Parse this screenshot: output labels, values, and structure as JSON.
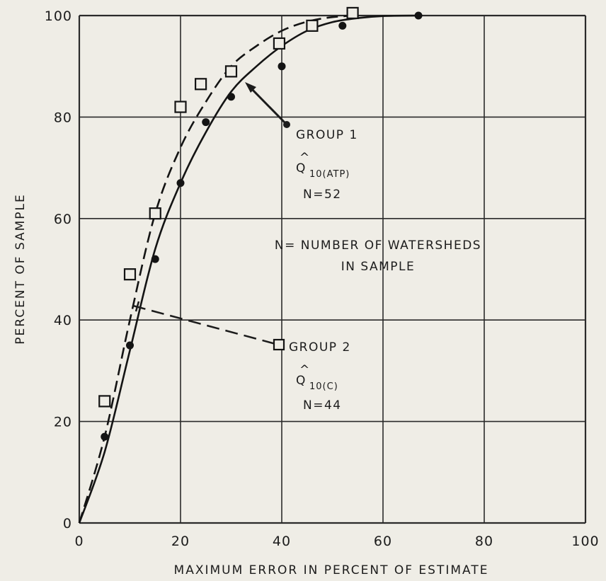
{
  "chart_data": {
    "type": "scatter",
    "title": "",
    "xlabel": "MAXIMUM ERROR IN PERCENT OF ESTIMATE",
    "ylabel": "PERCENT OF SAMPLE",
    "xlim": [
      0,
      100
    ],
    "ylim": [
      0,
      100
    ],
    "x_ticks": [
      "0",
      "20",
      "40",
      "60",
      "80",
      "100"
    ],
    "y_ticks": [
      "0",
      "20",
      "40",
      "60",
      "80",
      "100"
    ],
    "grid": true,
    "series": [
      {
        "name": "GROUP 1",
        "marker": "filled-circle",
        "line_style": "solid",
        "points": [
          {
            "x": 5,
            "y": 17
          },
          {
            "x": 10,
            "y": 35
          },
          {
            "x": 15,
            "y": 52
          },
          {
            "x": 20,
            "y": 67
          },
          {
            "x": 25,
            "y": 79
          },
          {
            "x": 30,
            "y": 84
          },
          {
            "x": 40,
            "y": 90
          },
          {
            "x": 52,
            "y": 98
          },
          {
            "x": 67,
            "y": 100
          }
        ],
        "curve": [
          {
            "x": 0,
            "y": 0
          },
          {
            "x": 5,
            "y": 14
          },
          {
            "x": 10,
            "y": 34
          },
          {
            "x": 15,
            "y": 54
          },
          {
            "x": 20,
            "y": 67
          },
          {
            "x": 25,
            "y": 77
          },
          {
            "x": 30,
            "y": 85
          },
          {
            "x": 35,
            "y": 90
          },
          {
            "x": 40,
            "y": 94
          },
          {
            "x": 45,
            "y": 97
          },
          {
            "x": 50,
            "y": 98.7
          },
          {
            "x": 55,
            "y": 99.5
          },
          {
            "x": 60,
            "y": 99.9
          },
          {
            "x": 67,
            "y": 100
          }
        ]
      },
      {
        "name": "GROUP 2",
        "marker": "open-square",
        "line_style": "dashed",
        "points": [
          {
            "x": 5,
            "y": 24
          },
          {
            "x": 10,
            "y": 49
          },
          {
            "x": 15,
            "y": 61
          },
          {
            "x": 20,
            "y": 82
          },
          {
            "x": 24,
            "y": 86.5
          },
          {
            "x": 30,
            "y": 89
          },
          {
            "x": 39.5,
            "y": 94.5
          },
          {
            "x": 46,
            "y": 98
          },
          {
            "x": 54,
            "y": 100.5
          }
        ],
        "curve": [
          {
            "x": 0,
            "y": 0
          },
          {
            "x": 5,
            "y": 17
          },
          {
            "x": 10,
            "y": 40
          },
          {
            "x": 15,
            "y": 61
          },
          {
            "x": 20,
            "y": 74
          },
          {
            "x": 25,
            "y": 83
          },
          {
            "x": 30,
            "y": 90
          },
          {
            "x": 35,
            "y": 94
          },
          {
            "x": 40,
            "y": 97
          },
          {
            "x": 45,
            "y": 98.8
          },
          {
            "x": 50,
            "y": 99.7
          },
          {
            "x": 55,
            "y": 100
          }
        ]
      }
    ],
    "annotations": {
      "group1": {
        "label": "GROUP 1",
        "formula_hat": "^",
        "formula_main": "Q",
        "formula_sub": "10(ATP)",
        "n": "N=52"
      },
      "note": {
        "line1": "N= NUMBER OF WATERSHEDS",
        "line2": "IN SAMPLE"
      },
      "group2": {
        "label": "GROUP 2",
        "formula_hat": "^",
        "formula_main": "Q",
        "formula_sub": "10(C)",
        "n": "N=44"
      }
    }
  }
}
